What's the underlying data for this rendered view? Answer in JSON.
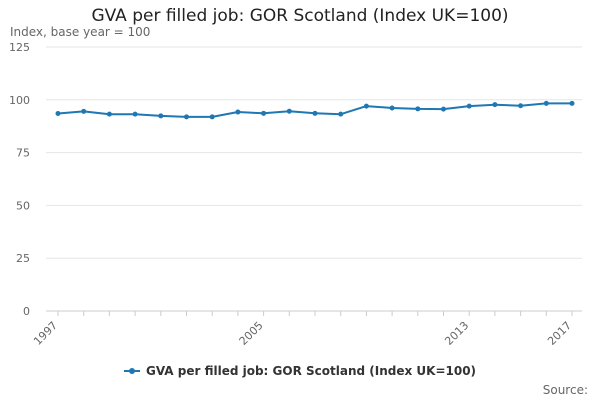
{
  "colors": {
    "series": "#1f77b4",
    "grid": "#e6e6e6",
    "axis": "#cccccc",
    "tick_text": "#666666"
  },
  "chart_data": {
    "type": "line",
    "title": "GVA per filled job: GOR Scotland (Index UK=100)",
    "ylabel": "Index, base year = 100",
    "xlabel": "",
    "x": [
      1997,
      1998,
      1999,
      2000,
      2001,
      2002,
      2003,
      2004,
      2005,
      2006,
      2007,
      2008,
      2009,
      2010,
      2011,
      2012,
      2013,
      2014,
      2015,
      2016,
      2017
    ],
    "series": [
      {
        "name": "GVA per filled job: GOR Scotland (Index UK=100)",
        "values": [
          93.5,
          94.5,
          93.2,
          93.2,
          92.4,
          91.9,
          91.9,
          94.2,
          93.6,
          94.6,
          93.6,
          93.2,
          97.0,
          96.1,
          95.7,
          95.6,
          97.0,
          97.7,
          97.2,
          98.3,
          98.3
        ]
      }
    ],
    "xlim": [
      1997,
      2017
    ],
    "ylim": [
      0,
      125
    ],
    "y_ticks": [
      0,
      25,
      50,
      75,
      100,
      125
    ],
    "x_tick_labels": [
      "1997",
      "2005",
      "2013",
      "2017"
    ],
    "grid": true,
    "legend_position": "bottom",
    "source_label": "Source:"
  }
}
